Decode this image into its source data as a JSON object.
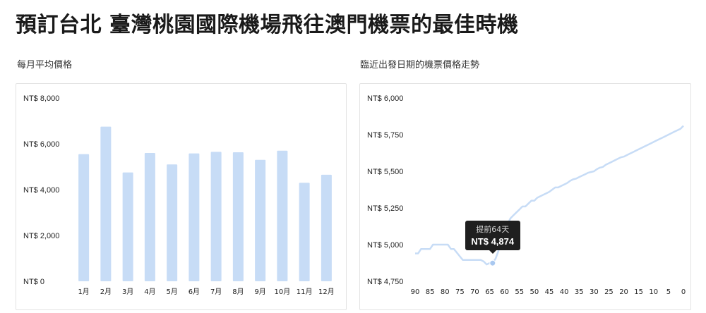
{
  "page": {
    "title": "預訂台北 臺灣桃園國際機場飛往澳門機票的最佳時機"
  },
  "colors": {
    "bar": "#c7dcf6",
    "line": "#c7dcf6",
    "marker": "#a9c8f0",
    "tooltip_bg": "#1f1f1f"
  },
  "chart_data": [
    {
      "type": "bar",
      "title": "每月平均價格",
      "categories": [
        "1月",
        "2月",
        "3月",
        "4月",
        "5月",
        "6月",
        "7月",
        "8月",
        "9月",
        "10月",
        "11月",
        "12月"
      ],
      "values": [
        5550,
        6750,
        4750,
        5600,
        5100,
        5580,
        5650,
        5630,
        5300,
        5700,
        4300,
        4650
      ],
      "yticks": [
        "NT$ 0",
        "NT$ 2,000",
        "NT$ 4,000",
        "NT$ 6,000",
        "NT$ 8,000"
      ],
      "ylim": [
        0,
        8000
      ],
      "grid": false
    },
    {
      "type": "line",
      "title": "臨近出發日期的機票價格走勢",
      "xlabel": "",
      "ylabel": "",
      "x": [
        90,
        89,
        88,
        87,
        86,
        85,
        84,
        83,
        82,
        81,
        80,
        79,
        78,
        77,
        76,
        75,
        74,
        73,
        72,
        71,
        70,
        69,
        68,
        67,
        66,
        65,
        64,
        63,
        62,
        61,
        60,
        59,
        58,
        57,
        56,
        55,
        54,
        53,
        52,
        51,
        50,
        49,
        48,
        47,
        46,
        45,
        44,
        43,
        42,
        41,
        40,
        39,
        38,
        37,
        36,
        35,
        34,
        33,
        32,
        31,
        30,
        29,
        28,
        27,
        26,
        25,
        24,
        23,
        22,
        21,
        20,
        19,
        18,
        17,
        16,
        15,
        14,
        13,
        12,
        11,
        10,
        9,
        8,
        7,
        6,
        5,
        4,
        3,
        2,
        1,
        0
      ],
      "y": [
        4940,
        4940,
        4970,
        4970,
        4970,
        4970,
        5000,
        5000,
        5000,
        5000,
        5000,
        5000,
        4970,
        4970,
        4945,
        4920,
        4895,
        4895,
        4895,
        4895,
        4895,
        4895,
        4895,
        4885,
        4865,
        4874,
        4874,
        4905,
        4960,
        5050,
        5120,
        5140,
        5180,
        5200,
        5220,
        5240,
        5260,
        5260,
        5280,
        5300,
        5300,
        5320,
        5330,
        5340,
        5350,
        5360,
        5375,
        5390,
        5390,
        5400,
        5410,
        5420,
        5435,
        5445,
        5450,
        5460,
        5470,
        5480,
        5490,
        5495,
        5500,
        5515,
        5525,
        5530,
        5545,
        5555,
        5565,
        5575,
        5585,
        5595,
        5600,
        5610,
        5620,
        5630,
        5640,
        5650,
        5660,
        5670,
        5680,
        5690,
        5700,
        5710,
        5720,
        5730,
        5740,
        5750,
        5760,
        5770,
        5780,
        5790,
        5810
      ],
      "xticks": [
        "90",
        "85",
        "80",
        "75",
        "70",
        "65",
        "60",
        "55",
        "50",
        "45",
        "40",
        "35",
        "30",
        "25",
        "20",
        "15",
        "10",
        "5",
        "0"
      ],
      "yticks": [
        "NT$ 4,750",
        "NT$ 5,000",
        "NT$ 5,250",
        "NT$ 5,500",
        "NT$ 5,750",
        "NT$ 6,000"
      ],
      "ylim": [
        4750,
        6000
      ],
      "xlim": [
        90,
        0
      ],
      "grid": false,
      "highlight": {
        "x": 64,
        "label": "提前64天",
        "value_text": "NT$ 4,874",
        "value": 4874
      }
    }
  ]
}
